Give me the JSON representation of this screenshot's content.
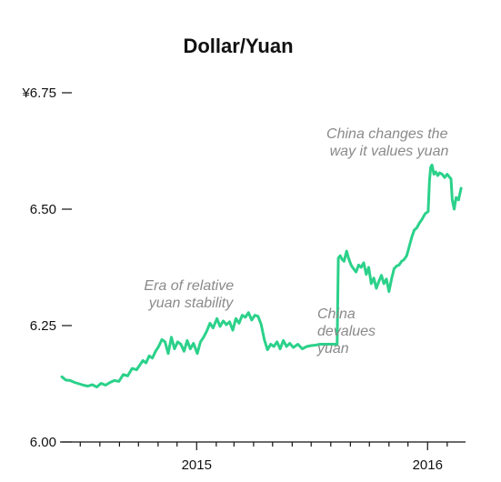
{
  "chart_data": {
    "type": "line",
    "title": "Dollar/Yuan",
    "xlabel": "",
    "ylabel": "",
    "ylim": [
      6.0,
      6.75
    ],
    "y_ticks": [
      {
        "value": 6.75,
        "label": "¥6.75"
      },
      {
        "value": 6.5,
        "label": "6.50"
      },
      {
        "value": 6.25,
        "label": "6.25"
      },
      {
        "value": 6.0,
        "label": "6.00"
      }
    ],
    "xlim": [
      "2014-05-30",
      "2016-03-01"
    ],
    "x_ticks": [
      {
        "value": "2015-01-01",
        "label": "2015"
      },
      {
        "value": "2016-01-01",
        "label": "2016"
      }
    ],
    "x_minor_ticks": [
      "2014-07-01",
      "2014-08-01",
      "2014-09-01",
      "2014-10-01",
      "2014-11-01",
      "2014-12-01",
      "2015-02-01",
      "2015-03-01",
      "2015-04-01",
      "2015-05-01",
      "2015-06-01",
      "2015-07-01",
      "2015-08-01",
      "2015-09-01",
      "2015-10-01",
      "2015-11-01",
      "2015-12-01",
      "2016-02-01"
    ],
    "grid": false,
    "colors": {
      "line": "#2bd18a",
      "axis": "#111111",
      "annotation": "#8a8a8a"
    },
    "series": [
      {
        "x": [
          "2014-06-02",
          "2014-06-08",
          "2014-06-15",
          "2014-06-22",
          "2014-06-29",
          "2014-07-06",
          "2014-07-13",
          "2014-07-20",
          "2014-07-27",
          "2014-08-03",
          "2014-08-10",
          "2014-08-17",
          "2014-08-24",
          "2014-08-31",
          "2014-09-07",
          "2014-09-14",
          "2014-09-21",
          "2014-09-28",
          "2014-10-03",
          "2014-10-08",
          "2014-10-13",
          "2014-10-18",
          "2014-10-23",
          "2014-10-28",
          "2014-11-02",
          "2014-11-07",
          "2014-11-12",
          "2014-11-17",
          "2014-11-22",
          "2014-11-27",
          "2014-12-02",
          "2014-12-07",
          "2014-12-12",
          "2014-12-17",
          "2014-12-22",
          "2014-12-27",
          "2015-01-02",
          "2015-01-07",
          "2015-01-12",
          "2015-01-17",
          "2015-01-22",
          "2015-01-27",
          "2015-02-02",
          "2015-02-07",
          "2015-02-12",
          "2015-02-17",
          "2015-02-22",
          "2015-02-27",
          "2015-03-04",
          "2015-03-09",
          "2015-03-14",
          "2015-03-19",
          "2015-03-24",
          "2015-03-29",
          "2015-04-03",
          "2015-04-08",
          "2015-04-13",
          "2015-04-18",
          "2015-04-23",
          "2015-04-28",
          "2015-05-03",
          "2015-05-08",
          "2015-05-13",
          "2015-05-18",
          "2015-05-23",
          "2015-05-28",
          "2015-06-03",
          "2015-06-10",
          "2015-06-17",
          "2015-06-24",
          "2015-07-01",
          "2015-07-08",
          "2015-07-15",
          "2015-07-22",
          "2015-07-29",
          "2015-08-05",
          "2015-08-10",
          "2015-08-11",
          "2015-08-13",
          "2015-08-16",
          "2015-08-19",
          "2015-08-22",
          "2015-08-26",
          "2015-08-29",
          "2015-09-02",
          "2015-09-06",
          "2015-09-10",
          "2015-09-14",
          "2015-09-18",
          "2015-09-22",
          "2015-09-26",
          "2015-09-30",
          "2015-10-04",
          "2015-10-08",
          "2015-10-12",
          "2015-10-16",
          "2015-10-20",
          "2015-10-24",
          "2015-10-28",
          "2015-11-01",
          "2015-11-05",
          "2015-11-09",
          "2015-11-13",
          "2015-11-17",
          "2015-11-21",
          "2015-11-25",
          "2015-11-29",
          "2015-12-03",
          "2015-12-07",
          "2015-12-11",
          "2015-12-15",
          "2015-12-19",
          "2015-12-23",
          "2015-12-28",
          "2016-01-02",
          "2016-01-04",
          "2016-01-06",
          "2016-01-08",
          "2016-01-11",
          "2016-01-14",
          "2016-01-17",
          "2016-01-20",
          "2016-01-24",
          "2016-01-28",
          "2016-02-01",
          "2016-02-04",
          "2016-02-07",
          "2016-02-09",
          "2016-02-12",
          "2016-02-15",
          "2016-02-19",
          "2016-02-23"
        ],
        "values": [
          6.14,
          6.133,
          6.132,
          6.128,
          6.125,
          6.122,
          6.12,
          6.123,
          6.118,
          6.126,
          6.122,
          6.128,
          6.132,
          6.13,
          6.145,
          6.142,
          6.158,
          6.155,
          6.165,
          6.175,
          6.17,
          6.185,
          6.18,
          6.195,
          6.205,
          6.22,
          6.215,
          6.19,
          6.225,
          6.2,
          6.215,
          6.21,
          6.195,
          6.218,
          6.2,
          6.212,
          6.19,
          6.215,
          6.225,
          6.238,
          6.255,
          6.245,
          6.265,
          6.248,
          6.26,
          6.252,
          6.258,
          6.24,
          6.265,
          6.255,
          6.272,
          6.268,
          6.278,
          6.262,
          6.272,
          6.27,
          6.252,
          6.22,
          6.198,
          6.21,
          6.205,
          6.215,
          6.2,
          6.218,
          6.205,
          6.212,
          6.203,
          6.21,
          6.2,
          6.205,
          6.207,
          6.208,
          6.21,
          6.21,
          6.21,
          6.21,
          6.21,
          6.21,
          6.395,
          6.4,
          6.392,
          6.388,
          6.41,
          6.395,
          6.38,
          6.372,
          6.365,
          6.38,
          6.375,
          6.385,
          6.36,
          6.375,
          6.34,
          6.352,
          6.33,
          6.345,
          6.358,
          6.34,
          6.35,
          6.323,
          6.35,
          6.372,
          6.378,
          6.38,
          6.388,
          6.392,
          6.4,
          6.42,
          6.44,
          6.455,
          6.46,
          6.47,
          6.478,
          6.49,
          6.495,
          6.56,
          6.59,
          6.595,
          6.575,
          6.58,
          6.572,
          6.578,
          6.575,
          6.568,
          6.575,
          6.57,
          6.565,
          6.52,
          6.5,
          6.525,
          6.52,
          6.545
        ]
      }
    ],
    "annotations": [
      {
        "lines": [
          "Era of relative",
          "yuan stability"
        ]
      },
      {
        "lines": [
          "China",
          "devalues",
          "yuan"
        ]
      },
      {
        "lines": [
          "China changes the",
          "way it values yuan"
        ]
      }
    ]
  }
}
